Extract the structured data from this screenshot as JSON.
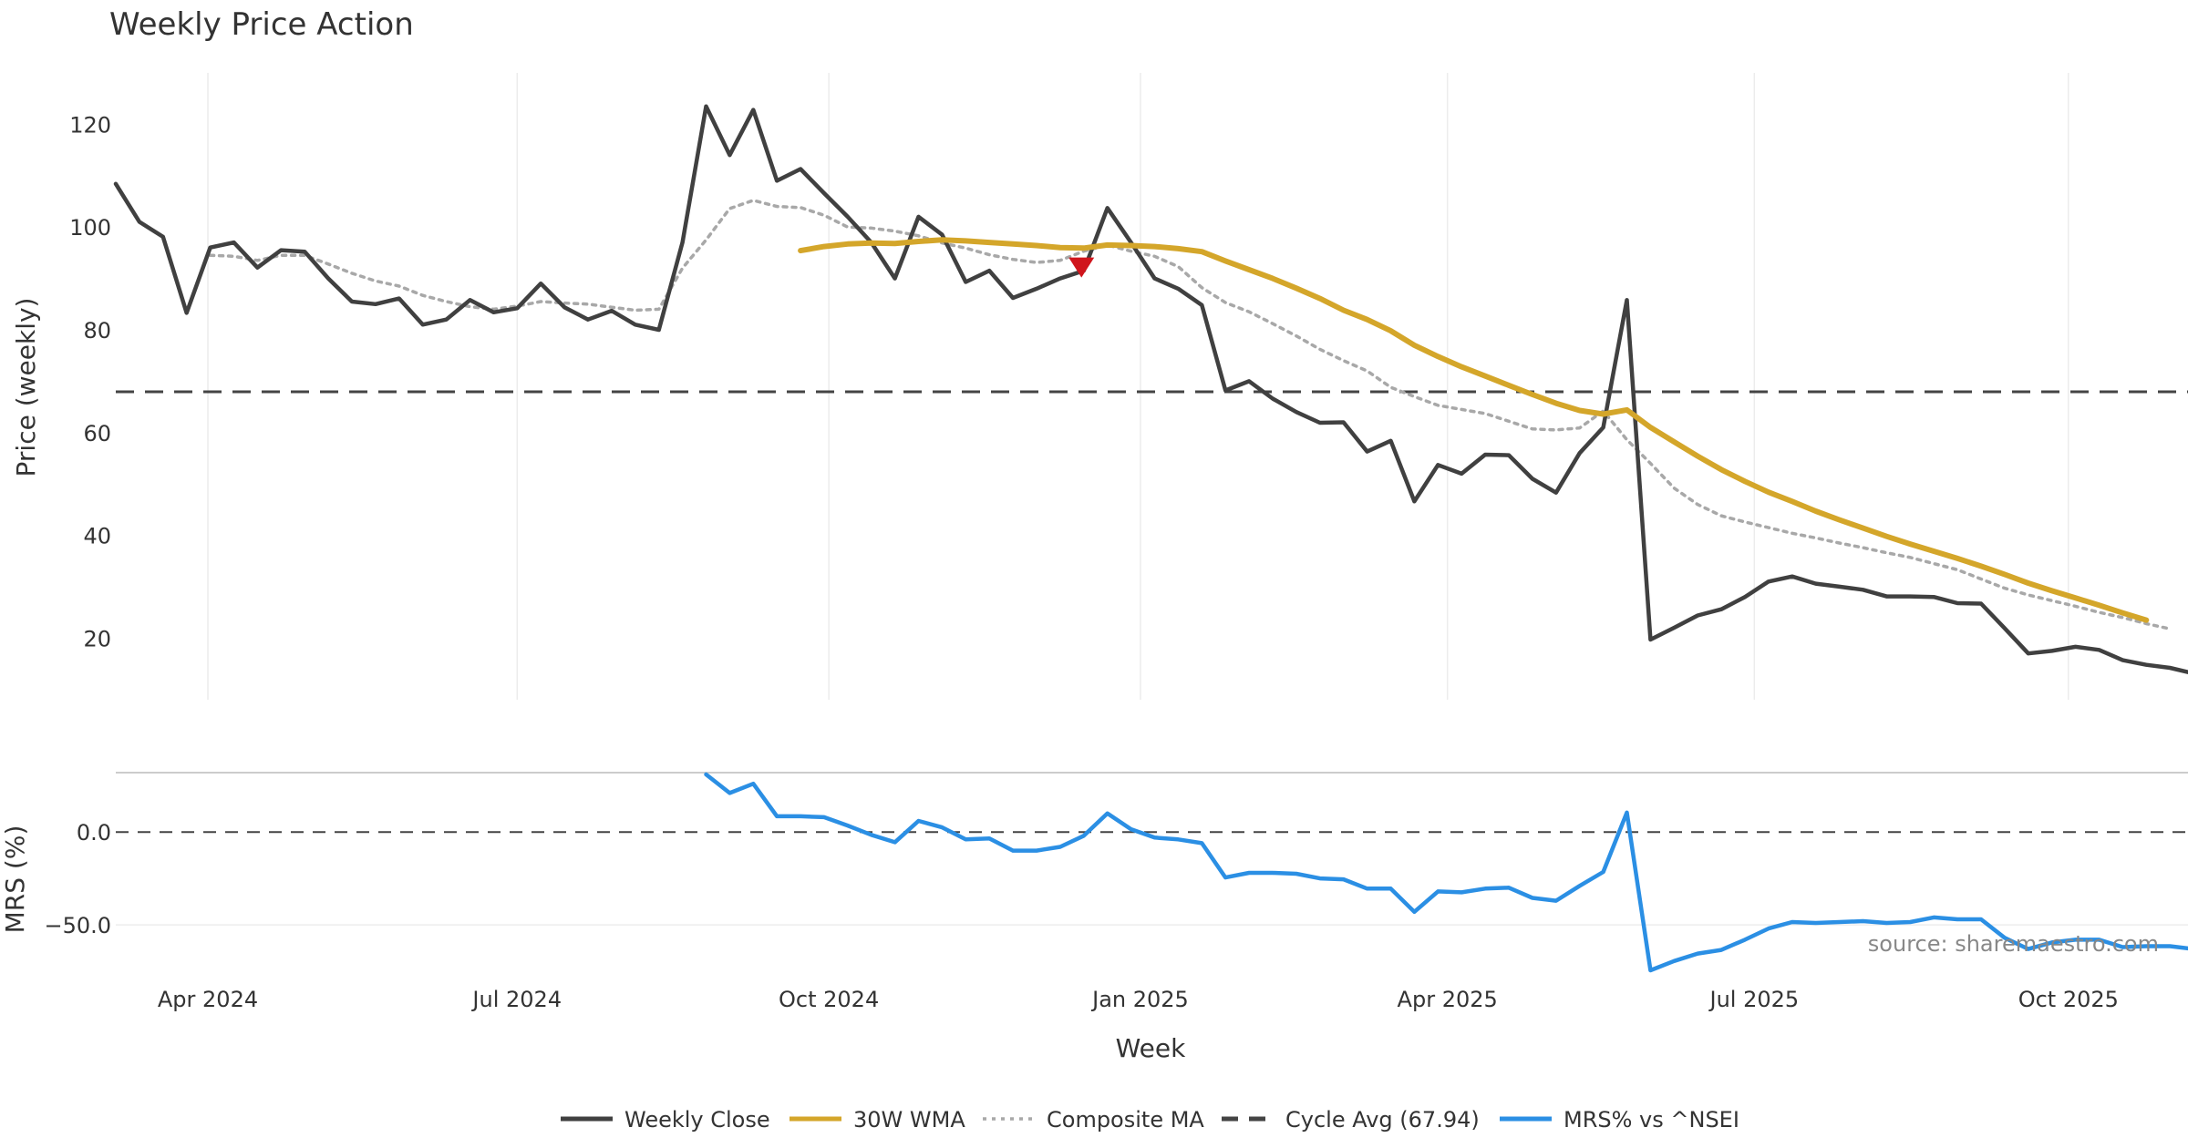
{
  "chart_data": {
    "type": "line",
    "title": "Weekly Price Action",
    "source": "source: sharemaestro.com",
    "xlabel": "Week",
    "x_tick_labels": [
      "Apr 2024",
      "Jul 2024",
      "Oct 2024",
      "Jan 2025",
      "Apr 2025",
      "Jul 2025",
      "Oct 2025"
    ],
    "x_tick_weeks": [
      3.9,
      17,
      30.2,
      43.4,
      56.4,
      69.4,
      82.7
    ],
    "x_range": [
      0,
      88.5
    ],
    "price_panel": {
      "ylabel": "Price (weekly)",
      "ylim": [
        8,
        130
      ],
      "yticks": [
        20,
        40,
        60,
        80,
        100,
        120
      ],
      "series": [
        {
          "name": "Weekly Close",
          "color": "#404040",
          "style": "solid",
          "values": [
            108.4,
            101,
            98.1,
            83.3,
            96,
            97,
            92.1,
            95.5,
            95.2,
            90,
            85.5,
            85,
            86.1,
            81,
            82,
            85.8,
            83.4,
            84.2,
            89,
            84.4,
            82,
            83.7,
            81,
            80,
            97,
            123.5,
            114,
            122.8,
            109,
            111.3,
            106.6,
            102,
            97,
            90,
            102,
            98.5,
            89.3,
            91.5,
            86.2,
            88,
            90,
            91.5,
            103.7,
            97,
            90,
            88,
            84.8,
            68.2,
            70,
            66.6,
            64,
            61.9,
            62,
            56.3,
            58.4,
            46.6,
            53.7,
            52,
            55.7,
            55.6,
            51,
            48.3,
            56,
            61,
            85.8,
            19.7,
            22,
            24.4,
            25.6,
            28,
            31,
            32,
            30.6,
            30,
            29.4,
            28.1,
            28.1,
            28,
            26.8,
            26.7,
            21.9,
            17,
            17.5,
            18.3,
            17.7,
            15.7,
            14.8,
            14.2,
            13.1
          ]
        },
        {
          "name": "30W WMA",
          "color": "#d4a62a",
          "style": "solid",
          "start_index": 29,
          "values": [
            95.4,
            96.2,
            96.7,
            96.9,
            96.8,
            97.2,
            97.5,
            97.3,
            97,
            96.7,
            96.4,
            96,
            95.9,
            96.5,
            96.4,
            96.2,
            95.8,
            95.2,
            93.4,
            91.7,
            90,
            88.1,
            86.1,
            83.8,
            82,
            79.8,
            77,
            74.8,
            72.8,
            71,
            69.2,
            67.4,
            65.7,
            64.3,
            63.6,
            64.4,
            61,
            58.2,
            55.4,
            52.8,
            50.5,
            48.4,
            46.6,
            44.7,
            43,
            41.4,
            39.8,
            38.3,
            36.9,
            35.5,
            34,
            32.4,
            30.7,
            29.2,
            27.8,
            26.4,
            24.9,
            23.5
          ]
        },
        {
          "name": "Composite MA",
          "color": "#a8a8a8",
          "style": "dotted",
          "start_index": 4,
          "values": [
            94.5,
            94.3,
            93.5,
            94.5,
            94.5,
            92.8,
            91,
            89.5,
            88.5,
            86.7,
            85.5,
            84.5,
            84,
            84.6,
            85.5,
            85.2,
            85,
            84.4,
            83.8,
            84,
            92,
            97.5,
            103.6,
            105.2,
            104,
            103.8,
            102.3,
            100,
            99.8,
            99.2,
            98.3,
            96.9,
            95.9,
            94.6,
            93.7,
            93.1,
            93.5,
            95.3,
            96.5,
            95.3,
            94.3,
            92.3,
            88.2,
            85.3,
            83.5,
            81.2,
            78.8,
            76.2,
            74,
            72,
            68.8,
            67,
            65.3,
            64.5,
            63.7,
            62.2,
            60.7,
            60.5,
            60.9,
            64.2,
            58.6,
            54,
            49.2,
            46,
            43.8,
            42.6,
            41.5,
            40.4,
            39.5,
            38.5,
            37.6,
            36.6,
            35.7,
            34.5,
            33.3,
            31.5,
            29.7,
            28.4,
            27.3,
            26.2,
            25,
            24,
            22.8,
            21.8
          ]
        },
        {
          "name": "Cycle Avg (67.94)",
          "color": "#444444",
          "style": "dashed",
          "value": 67.94
        }
      ]
    },
    "mrs_panel": {
      "ylabel": "MRS (%)",
      "ylim": [
        -75,
        32
      ],
      "yticks": [
        0,
        -50
      ],
      "ytick_labels": [
        "0.0",
        "−50.0"
      ],
      "zero_line": 0,
      "series": [
        {
          "name": "MRS% vs ^NSEI",
          "color": "#2b8fe4",
          "style": "solid",
          "start_index": 25,
          "values": [
            31,
            21,
            26,
            8.5,
            8.5,
            8,
            3.5,
            -1.5,
            -5.5,
            6,
            2.5,
            -4,
            -3.5,
            -10,
            -10,
            -8,
            -2,
            10,
            1.5,
            -3,
            -4,
            -6,
            -24.5,
            -22,
            -22,
            -22.5,
            -25,
            -25.5,
            -30.5,
            -30.5,
            -43,
            -32,
            -32.5,
            -30.5,
            -30,
            -35.5,
            -37,
            -29,
            -21.5,
            10.5,
            -74.5,
            -69.5,
            -65.5,
            -63.5,
            -58,
            -52,
            -48.5,
            -49,
            -48.5,
            -48,
            -49,
            -48.5,
            -46,
            -47,
            -47,
            -57,
            -63,
            -59.5,
            -58,
            -58,
            -62,
            -61.5,
            -61.5,
            -63
          ]
        }
      ]
    },
    "annotations": [
      {
        "type": "sell-marker",
        "shape": "down-triangle",
        "color": "#d0151c",
        "week": 40.9,
        "value": 92.3
      }
    ]
  }
}
